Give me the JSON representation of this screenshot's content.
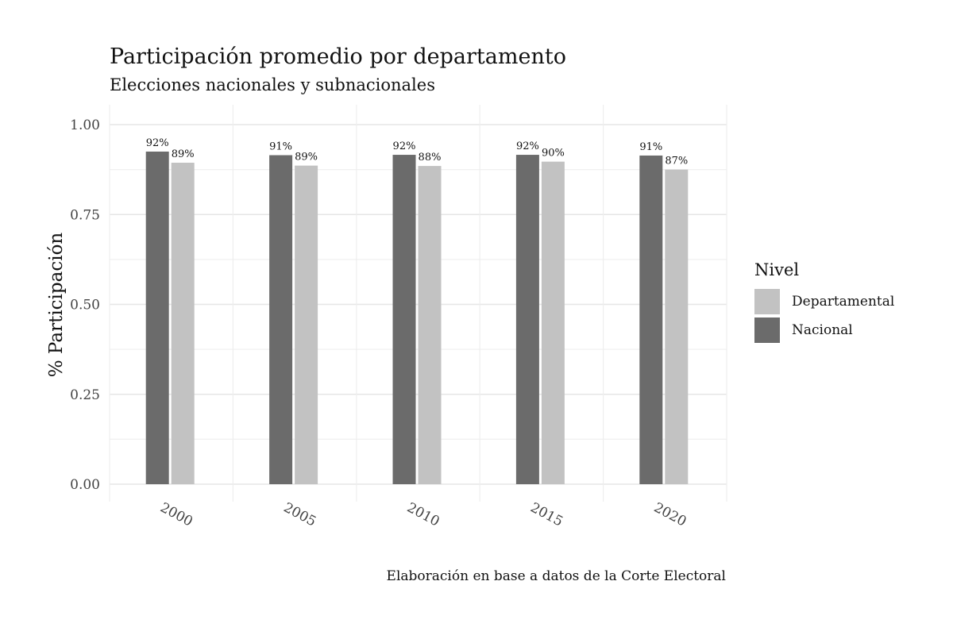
{
  "chart_data": {
    "type": "bar",
    "title": "Participación promedio por departamento",
    "subtitle": "Elecciones nacionales y subnacionales",
    "caption": "Elaboración en base a datos de la Corte Electoral",
    "xlabel": "",
    "ylabel": "% Participación",
    "categories": [
      "2000",
      "2005",
      "2010",
      "2015",
      "2020"
    ],
    "yticks": [
      "0.00",
      "0.25",
      "0.50",
      "0.75",
      "1.00"
    ],
    "ylim": [
      0,
      1.05
    ],
    "grid": true,
    "legend_title": "Nivel",
    "legend_position": "right",
    "series": [
      {
        "name": "Nacional",
        "color": "#6b6b6b",
        "values": [
          0.925,
          0.915,
          0.916,
          0.916,
          0.914
        ],
        "labels": [
          "92%",
          "91%",
          "92%",
          "92%",
          "91%"
        ]
      },
      {
        "name": "Departamental",
        "color": "#c2c2c2",
        "values": [
          0.894,
          0.886,
          0.885,
          0.897,
          0.875
        ],
        "labels": [
          "89%",
          "89%",
          "88%",
          "90%",
          "87%"
        ]
      }
    ],
    "legend_order": [
      "Departamental",
      "Nacional"
    ]
  }
}
